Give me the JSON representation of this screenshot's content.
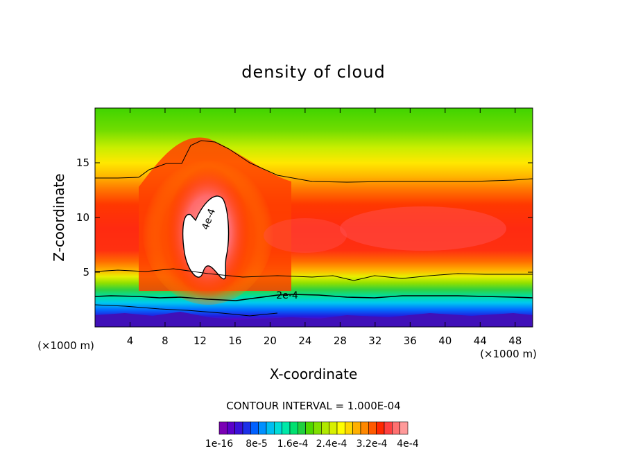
{
  "chart_data": {
    "type": "heatmap",
    "title": "density of cloud",
    "xlabel": "X-coordinate",
    "ylabel": "Z-coordinate",
    "x_unit": "(×1000 m)",
    "x_ticks": [
      4,
      8,
      12,
      16,
      20,
      24,
      28,
      32,
      36,
      40,
      44,
      48
    ],
    "y_ticks": [
      5,
      10,
      15
    ],
    "xlim": [
      0,
      50
    ],
    "ylim": [
      0,
      20
    ],
    "contour_interval_text": "CONTOUR INTERVAL = 1.000E-04",
    "contour_labels": [
      "4e-4",
      "2e-4"
    ],
    "colorbar": {
      "labels": [
        "1e-16",
        "8e-5",
        "1.6e-4",
        "2.4e-4",
        "3.2e-4",
        "4e-4"
      ],
      "colors": [
        "#7a00b4",
        "#5a00c8",
        "#3a10d8",
        "#1c30e8",
        "#0060ff",
        "#0090ff",
        "#00bef0",
        "#00dcd8",
        "#00e8a8",
        "#00e070",
        "#20d040",
        "#50d800",
        "#80e000",
        "#b0e800",
        "#d8f000",
        "#ffff00",
        "#ffd800",
        "#ffb000",
        "#ff8800",
        "#ff5a00",
        "#ff2800",
        "#ff4040",
        "#ff7070",
        "#ff9a9a"
      ]
    }
  }
}
